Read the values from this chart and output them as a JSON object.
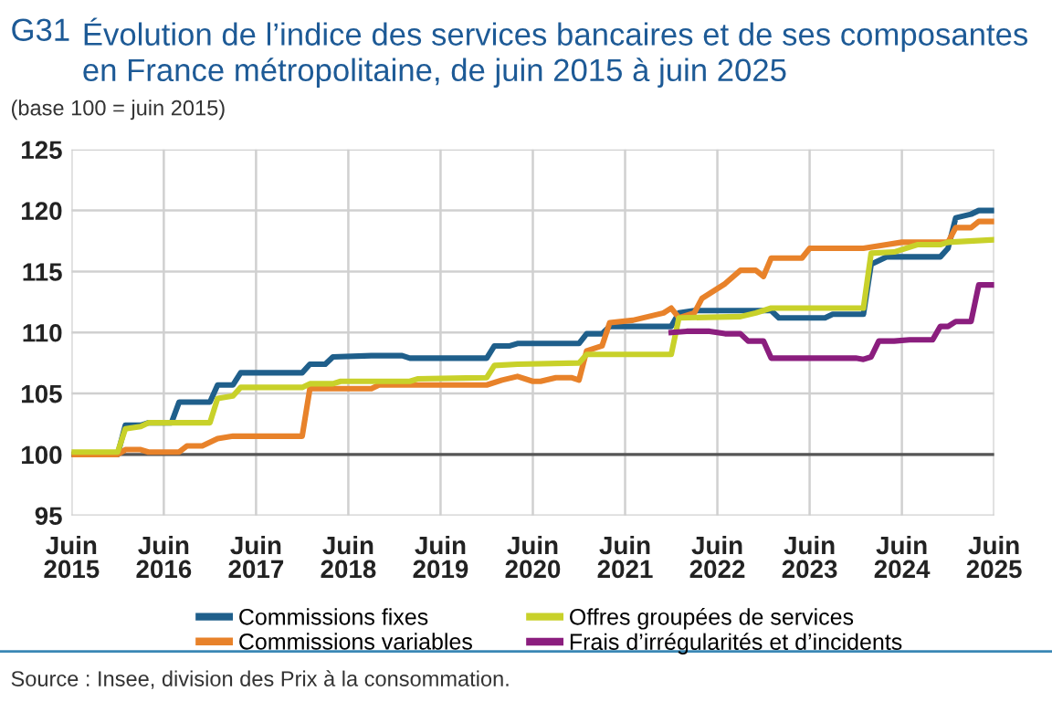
{
  "chart_data": {
    "type": "line",
    "title": "Évolution de l’indice des services bancaires et de ses composantes\nen France métropolitaine, de juin 2015 à juin 2025",
    "subtitle": "(base 100 = juin 2015)",
    "annotations": [
      "G31",
      "Source : Insee, division des Prix à la consommation."
    ],
    "xlim": [
      "2015-06",
      "2025-06"
    ],
    "xticks": [
      {
        "value": "2015-06",
        "label": "Juin\n2015"
      },
      {
        "value": "2016-06",
        "label": "Juin\n2016"
      },
      {
        "value": "2017-06",
        "label": "Juin\n2017"
      },
      {
        "value": "2018-06",
        "label": "Juin\n2018"
      },
      {
        "value": "2019-06",
        "label": "Juin\n2019"
      },
      {
        "value": "2020-06",
        "label": "Juin\n2020"
      },
      {
        "value": "2021-06",
        "label": "Juin\n2021"
      },
      {
        "value": "2022-06",
        "label": "Juin\n2022"
      },
      {
        "value": "2023-06",
        "label": "Juin\n2023"
      },
      {
        "value": "2024-06",
        "label": "Juin\n2024"
      },
      {
        "value": "2025-06",
        "label": "Juin\n2025"
      }
    ],
    "ylim": [
      95,
      125
    ],
    "yticks": [
      95,
      100,
      105,
      110,
      115,
      120,
      125
    ],
    "grid": true,
    "legend": "bottom",
    "marker": "none",
    "line_style": "solid",
    "ref_lines": [
      {
        "axis": "y",
        "value": 100,
        "color": "#555555"
      }
    ],
    "series": [
      {
        "name": "Commissions fixes",
        "color": "#1f5f8b",
        "x": [
          "2015-06",
          "2015-12",
          "2016-01",
          "2016-03",
          "2016-04",
          "2016-07",
          "2016-08",
          "2016-12",
          "2017-01",
          "2017-03",
          "2017-04",
          "2017-12",
          "2018-01",
          "2018-03",
          "2018-04",
          "2018-09",
          "2019-01",
          "2019-02",
          "2019-12",
          "2020-01",
          "2020-03",
          "2020-04",
          "2020-12",
          "2021-01",
          "2021-03",
          "2021-04",
          "2021-12",
          "2022-01",
          "2022-03",
          "2023-01",
          "2023-02",
          "2023-08",
          "2023-09",
          "2024-01",
          "2024-02",
          "2024-04",
          "2024-11",
          "2024-12",
          "2025-01",
          "2025-03",
          "2025-04",
          "2025-06"
        ],
        "values": [
          100,
          100,
          102.4,
          102.4,
          102.6,
          102.6,
          104.3,
          104.3,
          105.7,
          105.7,
          106.7,
          106.7,
          107.4,
          107.4,
          108.0,
          108.1,
          108.1,
          107.9,
          107.9,
          108.9,
          108.9,
          109.1,
          109.1,
          109.9,
          109.9,
          110.5,
          110.5,
          111.6,
          111.8,
          111.8,
          111.2,
          111.2,
          111.5,
          111.5,
          115.6,
          116.2,
          116.2,
          116.9,
          119.4,
          119.7,
          120.0,
          120.0
        ]
      },
      {
        "name": "Commissions variables",
        "color": "#e8822a",
        "x": [
          "2015-06",
          "2015-12",
          "2016-01",
          "2016-03",
          "2016-04",
          "2016-08",
          "2016-09",
          "2016-11",
          "2017-01",
          "2017-03",
          "2017-12",
          "2018-01",
          "2018-09",
          "2018-10",
          "2019-12",
          "2020-02",
          "2020-04",
          "2020-06",
          "2020-07",
          "2020-09",
          "2020-11",
          "2020-12",
          "2021-01",
          "2021-03",
          "2021-04",
          "2021-07",
          "2021-11",
          "2021-12",
          "2022-01",
          "2022-03",
          "2022-04",
          "2022-07",
          "2022-09",
          "2022-11",
          "2022-12",
          "2023-01",
          "2023-05",
          "2023-06",
          "2024-01",
          "2024-04",
          "2024-06",
          "2024-12",
          "2025-01",
          "2025-03",
          "2025-04",
          "2025-06"
        ],
        "values": [
          100,
          100,
          100.4,
          100.4,
          100.2,
          100.2,
          100.7,
          100.7,
          101.3,
          101.5,
          101.5,
          105.4,
          105.4,
          105.7,
          105.7,
          106.1,
          106.4,
          106.0,
          106.0,
          106.3,
          106.3,
          106.1,
          108.5,
          108.9,
          110.8,
          111.0,
          111.6,
          112.0,
          111.2,
          111.6,
          112.8,
          114.0,
          115.1,
          115.1,
          114.6,
          116.1,
          116.1,
          116.9,
          116.9,
          117.2,
          117.4,
          117.4,
          118.6,
          118.6,
          119.1,
          119.1
        ]
      },
      {
        "name": "Offres groupées de services",
        "color": "#c8d12a",
        "x": [
          "2015-06",
          "2015-12",
          "2016-01",
          "2016-03",
          "2016-04",
          "2016-12",
          "2017-01",
          "2017-03",
          "2017-04",
          "2017-12",
          "2018-01",
          "2018-04",
          "2018-05",
          "2019-02",
          "2019-03",
          "2019-12",
          "2020-01",
          "2020-04",
          "2020-12",
          "2021-01",
          "2021-12",
          "2022-01",
          "2022-09",
          "2022-11",
          "2023-01",
          "2024-01",
          "2024-02",
          "2024-05",
          "2024-08",
          "2024-11",
          "2024-12",
          "2025-06"
        ],
        "values": [
          100.2,
          100.2,
          102.1,
          102.3,
          102.6,
          102.6,
          104.6,
          104.8,
          105.5,
          105.5,
          105.8,
          105.8,
          106.0,
          106.0,
          106.2,
          106.3,
          107.3,
          107.4,
          107.5,
          108.2,
          108.2,
          111.2,
          111.3,
          111.6,
          112.0,
          112.0,
          116.5,
          116.6,
          117.2,
          117.2,
          117.4,
          117.6
        ]
      },
      {
        "name": "Frais d’irrégularités et d’incidents",
        "color": "#8b1e7e",
        "x": [
          "2021-12",
          "2022-02",
          "2022-05",
          "2022-07",
          "2022-09",
          "2022-10",
          "2022-12",
          "2023-01",
          "2023-12",
          "2024-01",
          "2024-02",
          "2024-03",
          "2024-05",
          "2024-07",
          "2024-10",
          "2024-11",
          "2024-12",
          "2025-01",
          "2025-03",
          "2025-04",
          "2025-06"
        ],
        "values": [
          110.0,
          110.1,
          110.1,
          109.9,
          109.9,
          109.3,
          109.3,
          107.9,
          107.9,
          107.8,
          108.0,
          109.3,
          109.3,
          109.4,
          109.4,
          110.5,
          110.5,
          110.9,
          110.9,
          113.9,
          113.9
        ]
      }
    ]
  }
}
